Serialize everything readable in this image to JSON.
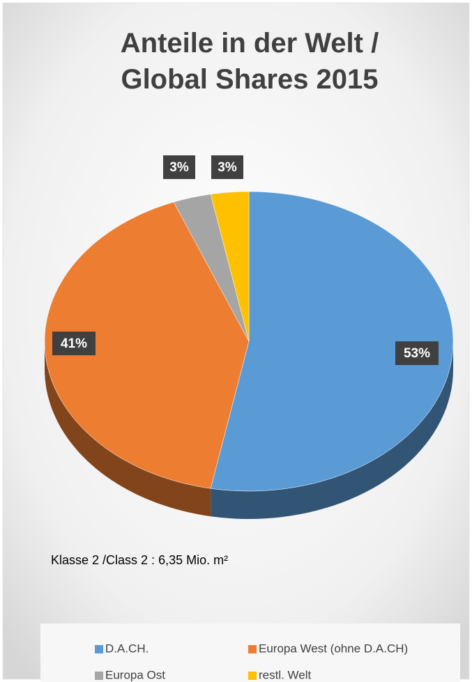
{
  "chart_data": {
    "type": "pie",
    "title": "Anteile in der Welt / Global Shares 2015",
    "categories": [
      "D.A.CH.",
      "Europa West (ohne D.A.CH)",
      "Europa Ost",
      "restl. Welt"
    ],
    "values": [
      53,
      41,
      3,
      3
    ],
    "value_labels": [
      "53%",
      "41%",
      "3%",
      "3%"
    ],
    "colors": [
      "#5b9bd5",
      "#ed7d31",
      "#a5a5a5",
      "#ffc000"
    ],
    "annotation": "Klasse 2 /Class 2 :  6,35 Mio. m²",
    "legend": "bottom"
  }
}
